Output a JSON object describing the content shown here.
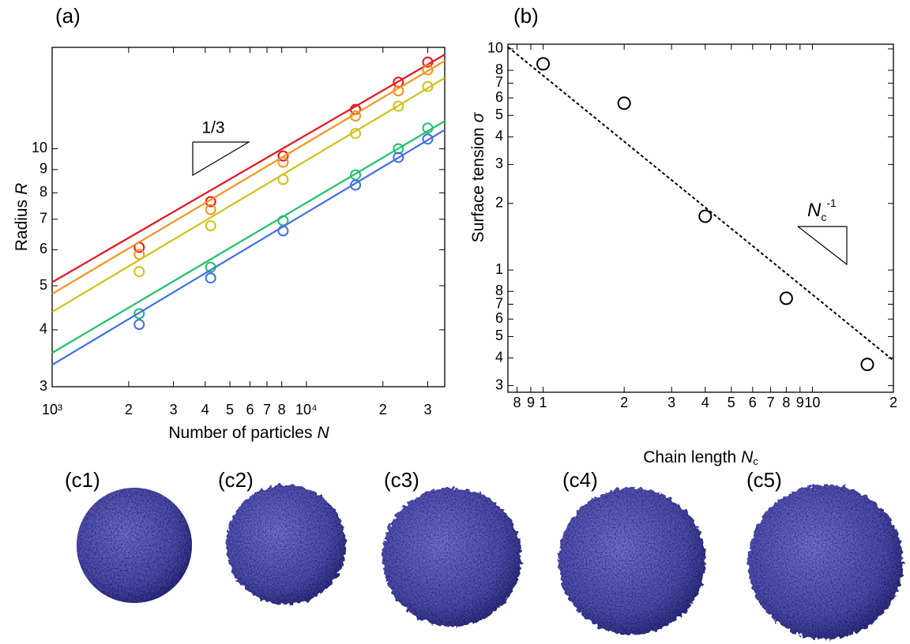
{
  "chart_data": [
    {
      "type": "scatter",
      "panel": "(a)",
      "log_x": true,
      "log_y": true,
      "xlabel": {
        "text": "Number of particles",
        "var": "N"
      },
      "ylabel": {
        "text": "Radius",
        "var": "R"
      },
      "annotation": "1/3",
      "x": [
        2200,
        4200,
        8100,
        15600,
        23000,
        30000
      ],
      "xlim": [
        1000,
        35000
      ],
      "xticks": [
        {
          "value": 1000,
          "label": "10³"
        },
        {
          "value": 2000,
          "label": "2"
        },
        {
          "value": 3000,
          "label": "3"
        },
        {
          "value": 4000,
          "label": "4"
        },
        {
          "value": 5000,
          "label": "5"
        },
        {
          "value": 6000,
          "label": "6"
        },
        {
          "value": 7000,
          "label": "7"
        },
        {
          "value": 8000,
          "label": "8"
        },
        {
          "value": 10000,
          "label": "10⁴"
        },
        {
          "value": 20000,
          "label": "2"
        },
        {
          "value": 30000,
          "label": "3"
        }
      ],
      "ylim": [
        3,
        16.7
      ],
      "yticks": [
        3,
        4,
        5,
        6,
        7,
        8,
        9,
        10
      ],
      "series": [
        {
          "color": "#e8141c",
          "values": [
            6.07,
            7.65,
            9.64,
            12.2,
            14.0,
            15.5
          ],
          "fit": {
            "x": [
              1000,
              35000
            ],
            "values": [
              5.09,
              16.1
            ]
          }
        },
        {
          "color": "#f7941d",
          "values": [
            5.86,
            7.35,
            9.34,
            11.8,
            13.4,
            14.9
          ],
          "fit": {
            "x": [
              1000,
              35000
            ],
            "values": [
              4.8,
              15.6
            ]
          }
        },
        {
          "color": "#cfc21a",
          "values": [
            5.37,
            6.77,
            8.56,
            10.8,
            12.4,
            13.7
          ],
          "fit": {
            "x": [
              1000,
              35000
            ],
            "values": [
              4.38,
              14.3
            ]
          }
        },
        {
          "color": "#1fc16b",
          "values": [
            4.34,
            5.49,
            6.95,
            8.76,
            10.0,
            11.1
          ],
          "fit": {
            "x": [
              1000,
              35000
            ],
            "values": [
              3.56,
              11.5
            ]
          }
        },
        {
          "color": "#3f6fe8",
          "values": [
            4.11,
            5.2,
            6.6,
            8.32,
            9.57,
            10.5
          ],
          "fit": {
            "x": [
              1000,
              35000
            ],
            "values": [
              3.35,
              11.0
            ]
          }
        }
      ]
    },
    {
      "type": "scatter",
      "panel": "(b)",
      "log_x": true,
      "log_y": true,
      "xlabel": {
        "text": "Chain length",
        "var": "N",
        "sub": "c"
      },
      "ylabel": {
        "text": "Surface tension",
        "var": "σ"
      },
      "annotation": {
        "base": "N",
        "sub": "c",
        "sup": "-1"
      },
      "x": [
        1,
        2,
        4,
        8,
        16
      ],
      "xlim": [
        0.74,
        20
      ],
      "xticks": [
        {
          "value": 0.8,
          "label": "8"
        },
        {
          "value": 0.9,
          "label": "9"
        },
        1,
        2,
        3,
        4,
        5,
        6,
        7,
        8,
        9,
        10,
        {
          "value": 20,
          "label": "2"
        }
      ],
      "ylim": [
        0.28,
        10.5
      ],
      "yticks": [
        {
          "value": 0.3,
          "label": "3"
        },
        {
          "value": 0.4,
          "label": "4"
        },
        {
          "value": 0.5,
          "label": "5"
        },
        {
          "value": 0.6,
          "label": "6"
        },
        {
          "value": 0.7,
          "label": "7"
        },
        {
          "value": 0.8,
          "label": "8"
        },
        1,
        2,
        3,
        4,
        5,
        6,
        7,
        8,
        10
      ],
      "series": [
        {
          "color": "#000000",
          "values": [
            8.56,
            5.68,
            1.75,
            0.745,
            0.374
          ],
          "fit": {
            "x": [
              0.74,
              20
            ],
            "values": [
              10.2,
              0.39
            ]
          }
        }
      ]
    }
  ],
  "images": [
    {
      "label": "(c1)"
    },
    {
      "label": "(c2)"
    },
    {
      "label": "(c3)"
    },
    {
      "label": "(c4)"
    },
    {
      "label": "(c5)"
    }
  ]
}
